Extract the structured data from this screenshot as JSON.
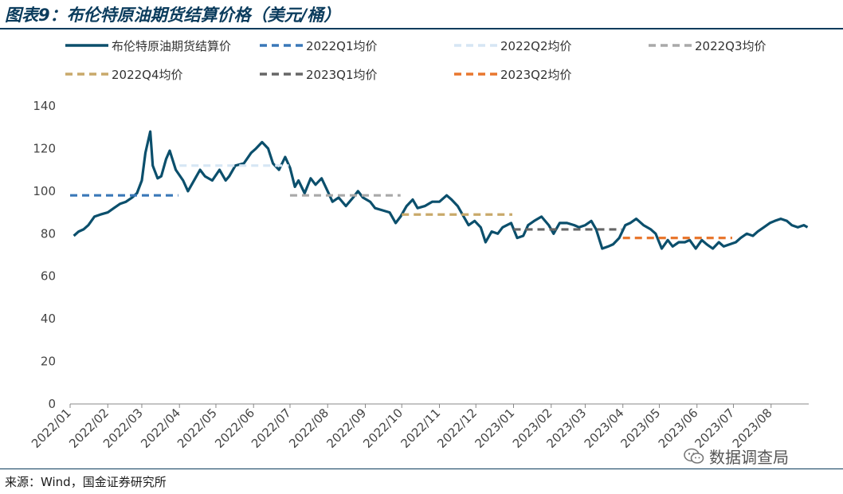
{
  "title": "图表9：布伦特原油期货结算价格（美元/桶）",
  "source": "来源：Wind，国金证券研究所",
  "watermark": "数据调查局",
  "chart_data": {
    "type": "line",
    "ylim": [
      0,
      140
    ],
    "yticks": [
      0,
      20,
      40,
      60,
      80,
      100,
      120,
      140
    ],
    "xticks": [
      "2022/01",
      "2022/02",
      "2022/03",
      "2022/04",
      "2022/05",
      "2022/06",
      "2022/07",
      "2022/08",
      "2022/09",
      "2022/10",
      "2022/11",
      "2022/12",
      "2023/01",
      "2023/02",
      "2023/03",
      "2023/04",
      "2023/05",
      "2023/06",
      "2023/07",
      "2023/08"
    ],
    "legend_position": "top",
    "series": [
      {
        "name": "布伦特原油期货结算价",
        "kind": "line",
        "color": "#0b4f6c",
        "points": [
          [
            "2022/01/04",
            79
          ],
          [
            "2022/01/08",
            81
          ],
          [
            "2022/01/12",
            82
          ],
          [
            "2022/01/16",
            84
          ],
          [
            "2022/01/21",
            88
          ],
          [
            "2022/01/26",
            89
          ],
          [
            "2022/02/01",
            90
          ],
          [
            "2022/02/06",
            92
          ],
          [
            "2022/02/11",
            94
          ],
          [
            "2022/02/16",
            95
          ],
          [
            "2022/02/21",
            97
          ],
          [
            "2022/02/25",
            99
          ],
          [
            "2022/03/01",
            105
          ],
          [
            "2022/03/04",
            118
          ],
          [
            "2022/03/08",
            128
          ],
          [
            "2022/03/10",
            112
          ],
          [
            "2022/03/14",
            106
          ],
          [
            "2022/03/17",
            107
          ],
          [
            "2022/03/21",
            115
          ],
          [
            "2022/03/24",
            119
          ],
          [
            "2022/03/29",
            110
          ],
          [
            "2022/04/04",
            105
          ],
          [
            "2022/04/08",
            100
          ],
          [
            "2022/04/12",
            104
          ],
          [
            "2022/04/18",
            110
          ],
          [
            "2022/04/22",
            107
          ],
          [
            "2022/04/28",
            105
          ],
          [
            "2022/05/04",
            110
          ],
          [
            "2022/05/09",
            105
          ],
          [
            "2022/05/12",
            107
          ],
          [
            "2022/05/17",
            112
          ],
          [
            "2022/05/24",
            113
          ],
          [
            "2022/05/30",
            118
          ],
          [
            "2022/06/03",
            120
          ],
          [
            "2022/06/08",
            123
          ],
          [
            "2022/06/13",
            120
          ],
          [
            "2022/06/17",
            113
          ],
          [
            "2022/06/22",
            110
          ],
          [
            "2022/06/27",
            116
          ],
          [
            "2022/07/01",
            111
          ],
          [
            "2022/07/05",
            102
          ],
          [
            "2022/07/08",
            105
          ],
          [
            "2022/07/13",
            99
          ],
          [
            "2022/07/18",
            106
          ],
          [
            "2022/07/22",
            103
          ],
          [
            "2022/07/27",
            106
          ],
          [
            "2022/08/01",
            100
          ],
          [
            "2022/08/05",
            95
          ],
          [
            "2022/08/10",
            97
          ],
          [
            "2022/08/16",
            93
          ],
          [
            "2022/08/22",
            97
          ],
          [
            "2022/08/26",
            100
          ],
          [
            "2022/08/30",
            97
          ],
          [
            "2022/09/05",
            95
          ],
          [
            "2022/09/09",
            92
          ],
          [
            "2022/09/15",
            91
          ],
          [
            "2022/09/21",
            90
          ],
          [
            "2022/09/26",
            85
          ],
          [
            "2022/09/30",
            88
          ],
          [
            "2022/10/05",
            93
          ],
          [
            "2022/10/10",
            96
          ],
          [
            "2022/10/14",
            92
          ],
          [
            "2022/10/20",
            93
          ],
          [
            "2022/10/26",
            95
          ],
          [
            "2022/11/01",
            95
          ],
          [
            "2022/11/07",
            98
          ],
          [
            "2022/11/11",
            96
          ],
          [
            "2022/11/16",
            93
          ],
          [
            "2022/11/21",
            88
          ],
          [
            "2022/11/25",
            84
          ],
          [
            "2022/11/30",
            86
          ],
          [
            "2022/12/05",
            83
          ],
          [
            "2022/12/09",
            76
          ],
          [
            "2022/12/14",
            81
          ],
          [
            "2022/12/19",
            80
          ],
          [
            "2022/12/23",
            83
          ],
          [
            "2022/12/30",
            85
          ],
          [
            "2023/01/04",
            78
          ],
          [
            "2023/01/09",
            79
          ],
          [
            "2023/01/13",
            84
          ],
          [
            "2023/01/18",
            86
          ],
          [
            "2023/01/24",
            88
          ],
          [
            "2023/01/30",
            84
          ],
          [
            "2023/02/03",
            80
          ],
          [
            "2023/02/08",
            85
          ],
          [
            "2023/02/14",
            85
          ],
          [
            "2023/02/20",
            84
          ],
          [
            "2023/02/24",
            83
          ],
          [
            "2023/03/01",
            84
          ],
          [
            "2023/03/06",
            86
          ],
          [
            "2023/03/10",
            82
          ],
          [
            "2023/03/15",
            73
          ],
          [
            "2023/03/20",
            74
          ],
          [
            "2023/03/24",
            75
          ],
          [
            "2023/03/29",
            78
          ],
          [
            "2023/04/03",
            84
          ],
          [
            "2023/04/07",
            85
          ],
          [
            "2023/04/12",
            87
          ],
          [
            "2023/04/18",
            84
          ],
          [
            "2023/04/24",
            82
          ],
          [
            "2023/04/28",
            80
          ],
          [
            "2023/05/03",
            73
          ],
          [
            "2023/05/08",
            77
          ],
          [
            "2023/05/12",
            74
          ],
          [
            "2023/05/17",
            76
          ],
          [
            "2023/05/22",
            76
          ],
          [
            "2023/05/26",
            77
          ],
          [
            "2023/05/31",
            73
          ],
          [
            "2023/06/05",
            77
          ],
          [
            "2023/06/09",
            75
          ],
          [
            "2023/06/14",
            73
          ],
          [
            "2023/06/19",
            76
          ],
          [
            "2023/06/23",
            74
          ],
          [
            "2023/06/28",
            75
          ],
          [
            "2023/07/03",
            76
          ],
          [
            "2023/07/07",
            78
          ],
          [
            "2023/07/12",
            80
          ],
          [
            "2023/07/17",
            79
          ],
          [
            "2023/07/21",
            81
          ],
          [
            "2023/07/26",
            83
          ],
          [
            "2023/07/31",
            85
          ],
          [
            "2023/08/04",
            86
          ],
          [
            "2023/08/09",
            87
          ],
          [
            "2023/08/14",
            86
          ],
          [
            "2023/08/18",
            84
          ],
          [
            "2023/08/23",
            83
          ],
          [
            "2023/08/28",
            84
          ],
          [
            "2023/08/31",
            83
          ]
        ]
      },
      {
        "name": "2022Q1均价",
        "kind": "dashed",
        "color": "#3a78b8",
        "value": 98,
        "from": "2022/01/01",
        "to": "2022/03/31"
      },
      {
        "name": "2022Q2均价",
        "kind": "dashed",
        "color": "#d6e6f4",
        "value": 112,
        "from": "2022/04/01",
        "to": "2022/06/30"
      },
      {
        "name": "2022Q3均价",
        "kind": "dashed",
        "color": "#a9a9a9",
        "value": 98,
        "from": "2022/07/01",
        "to": "2022/09/30"
      },
      {
        "name": "2022Q4均价",
        "kind": "dashed",
        "color": "#c9a96a",
        "value": 89,
        "from": "2022/10/01",
        "to": "2022/12/31"
      },
      {
        "name": "2023Q1均价",
        "kind": "dashed",
        "color": "#666666",
        "value": 82,
        "from": "2023/01/01",
        "to": "2023/03/31"
      },
      {
        "name": "2023Q2均价",
        "kind": "dashed",
        "color": "#e8772e",
        "value": 78,
        "from": "2023/04/01",
        "to": "2023/06/30"
      }
    ]
  }
}
